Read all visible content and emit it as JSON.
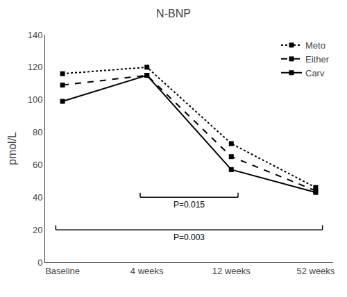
{
  "chart_data": {
    "type": "line",
    "title": "N-BNP",
    "y_label": "pmol/L",
    "categories": [
      "Baseline",
      "4 weeks",
      "12 weeks",
      "52 weeks"
    ],
    "series": [
      {
        "name": "Meto",
        "color": "#000000",
        "values": [
          116,
          120,
          73,
          46
        ],
        "line_style": "dotted",
        "marker": "square"
      },
      {
        "name": "Either",
        "color": "#000000",
        "values": [
          109,
          115,
          65,
          44
        ],
        "line_style": "dashed",
        "marker": "square"
      },
      {
        "name": "Carv",
        "color": "#000000",
        "values": [
          99,
          115,
          57,
          43
        ],
        "line_style": "solid",
        "marker": "square"
      }
    ],
    "ylim": [
      0,
      140
    ],
    "yticks": [
      0,
      20,
      40,
      60,
      80,
      100,
      120,
      140
    ],
    "grid": false,
    "legend": "upper right",
    "annotations": [
      {
        "text": "P=0.015",
        "x_start": "4 weeks",
        "x_end": "12 weeks",
        "y": 40
      },
      {
        "text": "P=0.003",
        "x_start": "Baseline",
        "x_end": "52 weeks",
        "y": 20
      }
    ]
  }
}
